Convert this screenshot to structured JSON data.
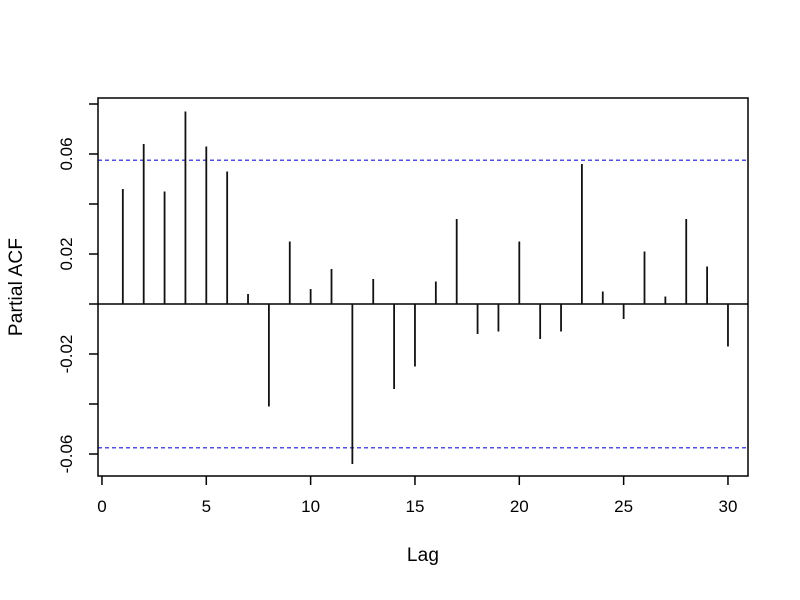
{
  "chart_data": {
    "type": "bar",
    "subtype": "pacf-spike-plot",
    "title": "",
    "xlabel": "Lag",
    "ylabel": "Partial ACF",
    "x": [
      1,
      2,
      3,
      4,
      5,
      6,
      7,
      8,
      9,
      10,
      11,
      12,
      13,
      14,
      15,
      16,
      17,
      18,
      19,
      20,
      21,
      22,
      23,
      24,
      25,
      26,
      27,
      28,
      29,
      30
    ],
    "values": [
      0.046,
      0.064,
      0.045,
      0.077,
      0.063,
      0.053,
      0.004,
      -0.041,
      0.025,
      0.006,
      0.014,
      -0.064,
      0.01,
      -0.034,
      -0.025,
      0.009,
      0.034,
      -0.012,
      -0.011,
      0.025,
      -0.014,
      -0.011,
      0.056,
      0.005,
      -0.006,
      0.021,
      0.003,
      0.034,
      0.015,
      -0.017
    ],
    "confidence_level": 0.0575,
    "confidence_lines": [
      0.0575,
      -0.0575
    ],
    "zero_line": 0,
    "x_ticks": [
      0,
      5,
      10,
      15,
      20,
      25,
      30
    ],
    "x_tick_labels": [
      "0",
      "5",
      "10",
      "15",
      "20",
      "25",
      "30"
    ],
    "y_ticks_all": [
      0.08,
      0.06,
      0.04,
      0.02,
      0.0,
      -0.02,
      -0.04,
      -0.06
    ],
    "y_ticks_labeled": [
      0.06,
      0.02,
      -0.02,
      -0.06
    ],
    "y_tick_labels": [
      "0.06",
      "0.02",
      "-0.02",
      "-0.06"
    ],
    "xlim": [
      -0.19,
      30.96
    ],
    "ylim": [
      -0.0688,
      0.0824
    ],
    "grid": "off",
    "legend": "none",
    "colors": {
      "spike": "#111111",
      "axis": "#000000",
      "confidence_dashed": "#5050e0",
      "background": "#ffffff",
      "text": "#000000"
    }
  }
}
